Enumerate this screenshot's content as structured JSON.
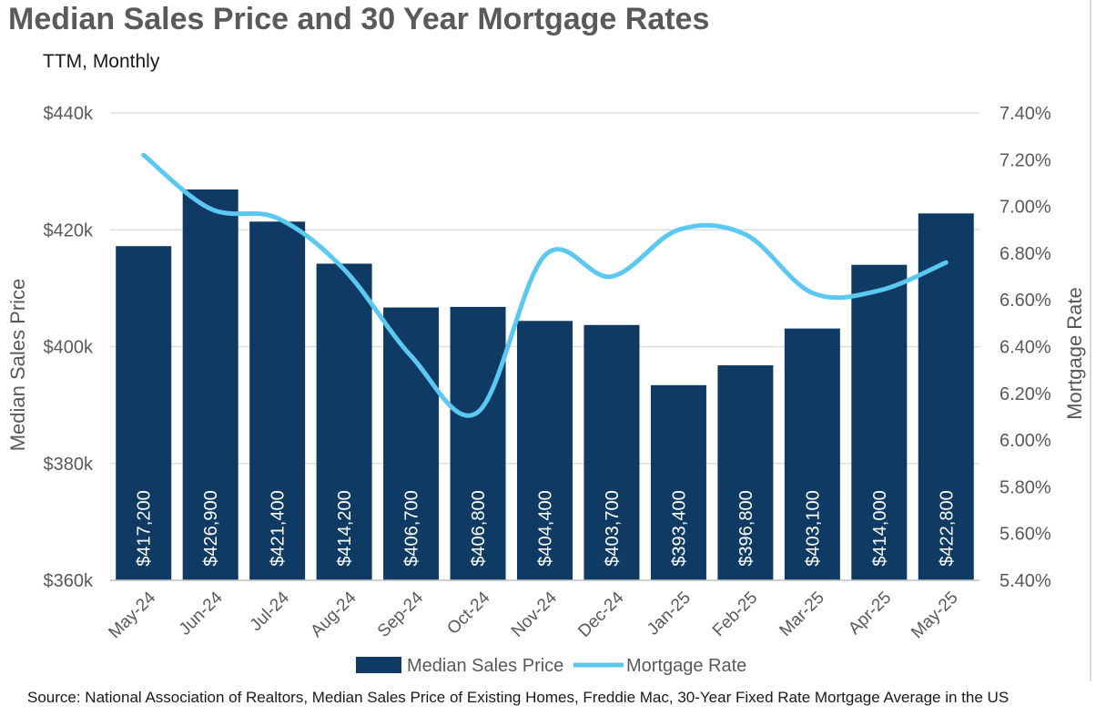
{
  "title": "Median Sales Price and 30 Year Mortgage Rates",
  "subtitle": "TTM, Monthly",
  "source": "Source: National Association of Realtors, Median Sales Price of Existing Homes, Freddie Mac, 30-Year Fixed Rate Mortgage Average in the US",
  "chart_data": {
    "type": "bar",
    "title": "Median Sales Price and 30 Year Mortgage Rates",
    "subtitle": "TTM, Monthly",
    "categories": [
      "May-24",
      "Jun-24",
      "Jul-24",
      "Aug-24",
      "Sep-24",
      "Oct-24",
      "Nov-24",
      "Dec-24",
      "Jan-25",
      "Feb-25",
      "Mar-25",
      "Apr-25",
      "May-25"
    ],
    "series": [
      {
        "name": "Median Sales Price",
        "type": "bar",
        "axis": "left",
        "color": "#0e3a64",
        "values": [
          417200,
          426900,
          421400,
          414200,
          406700,
          406800,
          404400,
          403700,
          393400,
          396800,
          403100,
          414000,
          422800
        ],
        "labels": [
          "$417,200",
          "$426,900",
          "$421,400",
          "$414,200",
          "$406,700",
          "$406,800",
          "$404,400",
          "$403,700",
          "$393,400",
          "$396,800",
          "$403,100",
          "$414,000",
          "$422,800"
        ]
      },
      {
        "name": "Mortgage Rate",
        "type": "line",
        "axis": "right",
        "color": "#5bc8f2",
        "values": [
          7.22,
          6.99,
          6.95,
          6.73,
          6.36,
          6.12,
          6.79,
          6.7,
          6.9,
          6.88,
          6.63,
          6.64,
          6.76
        ]
      }
    ],
    "y_left": {
      "label": "Median Sales Price",
      "min": 360000,
      "max": 440000,
      "ticks": [
        360000,
        380000,
        400000,
        420000,
        440000
      ],
      "tick_labels": [
        "$360k",
        "$380k",
        "$400k",
        "$420k",
        "$440k"
      ]
    },
    "y_right": {
      "label": "Mortgage Rate",
      "min": 5.4,
      "max": 7.4,
      "ticks": [
        5.4,
        5.6,
        5.8,
        6.0,
        6.2,
        6.4,
        6.6,
        6.8,
        7.0,
        7.2,
        7.4
      ],
      "tick_labels": [
        "5.40%",
        "5.60%",
        "5.80%",
        "6.00%",
        "6.20%",
        "6.40%",
        "6.60%",
        "6.80%",
        "7.00%",
        "7.20%",
        "7.40%"
      ]
    },
    "grid": true,
    "legend": "bottom"
  }
}
